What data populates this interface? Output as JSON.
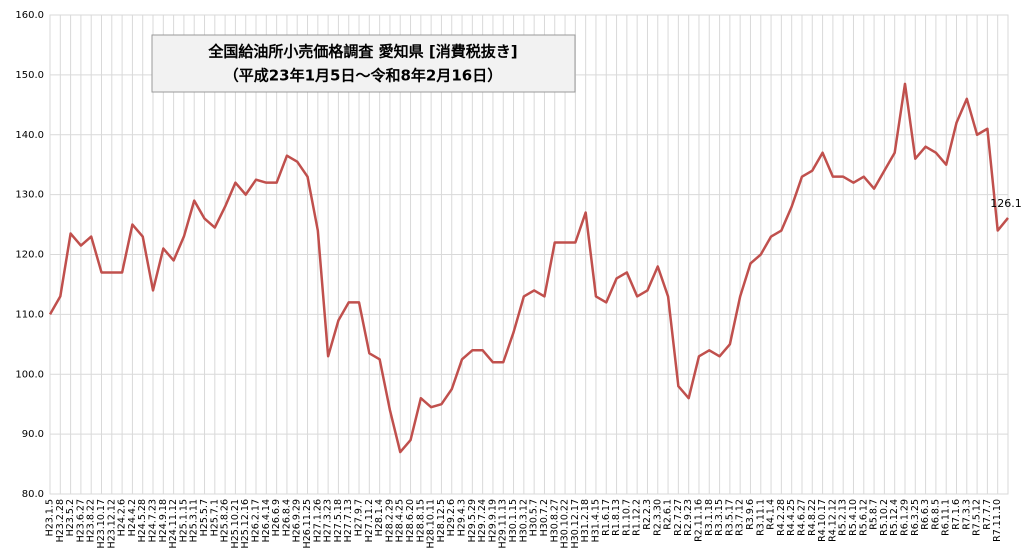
{
  "chart_data": {
    "type": "line",
    "title": "全国給油所小売価格調査 愛知県 [消費税抜き]",
    "subtitle": "（平成23年1月5日～令和8年2月16日）",
    "categories": [
      "H23.1.5",
      "H23.2.28",
      "H23.5.2",
      "H23.6.27",
      "H23.8.22",
      "H23.10.17",
      "H23.12.12",
      "H24.2.6",
      "H24.4.2",
      "H24.5.28",
      "H24.7.23",
      "H24.9.18",
      "H24.11.12",
      "H25.1.15",
      "H25.3.11",
      "H25.5.7",
      "H25.7.1",
      "H25.8.26",
      "H25.10.21",
      "H25.12.16",
      "H26.2.17",
      "H26.4.14",
      "H26.6.9",
      "H26.8.4",
      "H26.9.29",
      "H26.11.25",
      "H27.1.26",
      "H27.3.23",
      "H27.5.18",
      "H27.7.13",
      "H27.9.7",
      "H27.11.2",
      "H28.1.4",
      "H28.2.29",
      "H28.4.25",
      "H28.6.20",
      "H28.8.15",
      "H28.10.11",
      "H28.12.5",
      "H29.2.6",
      "H29.4.3",
      "H29.5.29",
      "H29.7.24",
      "H29.9.19",
      "H29.11.13",
      "H30.1.15",
      "H30.3.12",
      "H30.5.7",
      "H30.7.2",
      "H30.8.27",
      "H30.10.22",
      "H30.12.17",
      "H31.2.18",
      "H31.4.15",
      "R1.6.17",
      "R1.8.13",
      "R1.10.7",
      "R1.12.2",
      "R2.2.3",
      "R2.3.30",
      "R2.6.1",
      "R2.7.27",
      "R2.9.23",
      "R2.11.16",
      "R3.1.18",
      "R3.3.15",
      "R3.5.17",
      "R3.7.12",
      "R3.9.6",
      "R3.11.1",
      "R4.1.4",
      "R4.2.28",
      "R4.4.25",
      "R4.6.27",
      "R4.8.22",
      "R4.10.17",
      "R4.12.12",
      "R5.2.13",
      "R5.4.10",
      "R5.6.12",
      "R5.8.7",
      "R5.10.2",
      "R5.12.4",
      "R6.1.29",
      "R6.3.25",
      "R6.6.3",
      "R6.8.5",
      "R6.11.1",
      "R7.1.6",
      "R7.3.3",
      "R7.5.12",
      "R7.7.7",
      "R7.11.10",
      null
    ],
    "series": [
      {
        "color": "#c0504d",
        "values": [
          110,
          113,
          123.5,
          121.5,
          123,
          117,
          117,
          117,
          125,
          123,
          114,
          121,
          119,
          123,
          129,
          126,
          124.5,
          128,
          132,
          130,
          132.5,
          132,
          132,
          136.5,
          135.5,
          133,
          124,
          103,
          109,
          112,
          112,
          103.5,
          102.5,
          94,
          87,
          89,
          96,
          94.5,
          95,
          97.5,
          102.5,
          104,
          104,
          102,
          102,
          107,
          113,
          114,
          113,
          122,
          122,
          122,
          127,
          113,
          112,
          116,
          117,
          113,
          114,
          118,
          113,
          98,
          96,
          103,
          104,
          103,
          105,
          113,
          118.5,
          120,
          123,
          124,
          128,
          133,
          134,
          137,
          133,
          133,
          132,
          133,
          131,
          134,
          137,
          148.5,
          136,
          138,
          137,
          135,
          142,
          146,
          140,
          141,
          124,
          126.1
        ]
      }
    ],
    "label_last": true,
    "ylim": [
      80,
      160
    ],
    "yticks": [
      {
        "value": 80,
        "label": "80.0"
      },
      {
        "value": 90,
        "label": "90.0"
      },
      {
        "value": 100,
        "label": "100.0"
      },
      {
        "value": 110,
        "label": "110.0"
      },
      {
        "value": 120,
        "label": "120.0"
      },
      {
        "value": 130,
        "label": "130.0"
      },
      {
        "value": 140,
        "label": "140.0"
      },
      {
        "value": 150,
        "label": "150.0"
      },
      {
        "value": 160,
        "label": "160.0"
      }
    ],
    "grid": true
  }
}
